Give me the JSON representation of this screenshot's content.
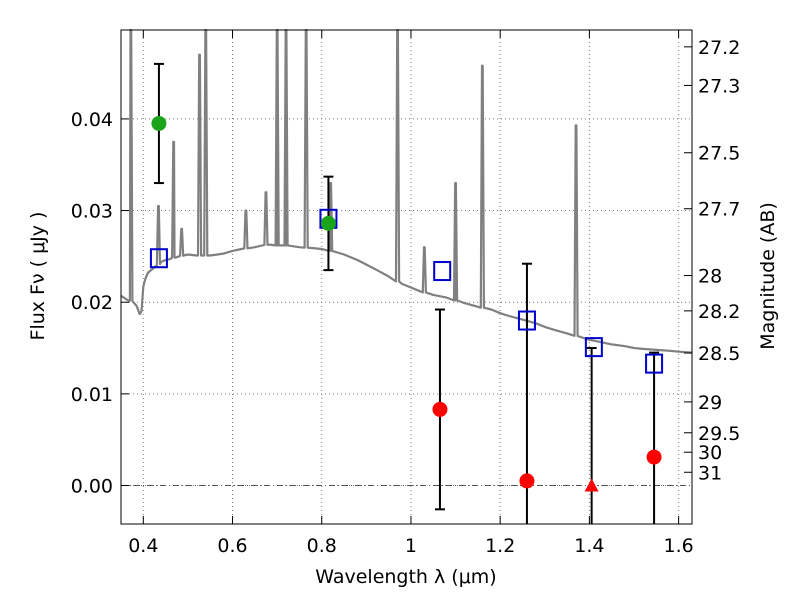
{
  "chart_data": {
    "type": "scatter",
    "xlabel": "Wavelength  λ (μm)",
    "ylabel": "Flux  Fν  ( μJy )",
    "y2label": "Magnitude (AB)",
    "xlim": [
      0.35,
      1.63
    ],
    "ylim": [
      -0.0042,
      0.0497
    ],
    "grid": true,
    "x_ticks": [
      0.4,
      0.6,
      0.8,
      1.0,
      1.2,
      1.4,
      1.6
    ],
    "x_tick_labels": [
      "0.4",
      "0.6",
      "0.8",
      "1",
      "1.2",
      "1.4",
      "1.6"
    ],
    "y_ticks": [
      0.0,
      0.01,
      0.02,
      0.03,
      0.04
    ],
    "y_tick_labels": [
      "0.00",
      "0.01",
      "0.02",
      "0.03",
      "0.04"
    ],
    "mag_ticks": [
      {
        "label": "27.2",
        "mag": 27.2
      },
      {
        "label": "27.3",
        "mag": 27.3
      },
      {
        "label": "27.5",
        "mag": 27.5
      },
      {
        "label": "27.7",
        "mag": 27.7
      },
      {
        "label": "28",
        "mag": 28.0
      },
      {
        "label": "28.2",
        "mag": 28.2
      },
      {
        "label": "28.5",
        "mag": 28.5
      },
      {
        "label": "29",
        "mag": 29.0
      },
      {
        "label": "29.5",
        "mag": 29.5
      },
      {
        "label": "30",
        "mag": 30.0
      },
      {
        "label": "31",
        "mag": 31.0
      }
    ],
    "colors": {
      "sed": "#808080",
      "detection": "#1aa41a",
      "nondetection": "#ff0000",
      "model": "#0000cc",
      "errorbar": "#000000",
      "grid": "#7f7f7f"
    },
    "series": [
      {
        "name": "model SED",
        "kind": "line",
        "x": [
          0.35,
          0.37,
          0.385,
          0.392,
          0.396,
          0.4,
          0.405,
          0.41,
          0.42,
          0.43,
          0.44,
          0.45,
          0.46,
          0.47,
          0.48,
          0.49,
          0.5,
          0.52,
          0.55,
          0.58,
          0.6,
          0.62,
          0.65,
          0.68,
          0.7,
          0.72,
          0.75,
          0.78,
          0.8,
          0.82,
          0.85,
          0.88,
          0.9,
          0.92,
          0.95,
          0.98,
          1.0,
          1.02,
          1.05,
          1.08,
          1.1,
          1.12,
          1.15,
          1.18,
          1.2,
          1.22,
          1.25,
          1.28,
          1.3,
          1.32,
          1.35,
          1.38,
          1.4,
          1.42,
          1.45,
          1.48,
          1.5,
          1.52,
          1.55,
          1.58,
          1.6,
          1.63
        ],
        "values": [
          0.0207,
          0.0202,
          0.0196,
          0.0187,
          0.019,
          0.0217,
          0.0226,
          0.0232,
          0.0236,
          0.024,
          0.0244,
          0.0246,
          0.0247,
          0.0249,
          0.025,
          0.0251,
          0.0252,
          0.0251,
          0.0251,
          0.0253,
          0.0256,
          0.0258,
          0.026,
          0.0263,
          0.0262,
          0.0262,
          0.026,
          0.0259,
          0.0258,
          0.0256,
          0.0252,
          0.0246,
          0.0241,
          0.0236,
          0.0228,
          0.022,
          0.0216,
          0.0212,
          0.0208,
          0.0205,
          0.0202,
          0.0199,
          0.0195,
          0.0192,
          0.0188,
          0.0185,
          0.0181,
          0.0177,
          0.0173,
          0.017,
          0.0166,
          0.0162,
          0.0159,
          0.0157,
          0.0154,
          0.0152,
          0.015,
          0.0149,
          0.0148,
          0.0147,
          0.0146,
          0.0145
        ]
      },
      {
        "name": "emission lines",
        "kind": "lines",
        "points": [
          {
            "x": 0.372,
            "peak": 0.0497
          },
          {
            "x": 0.434,
            "peak": 0.0305
          },
          {
            "x": 0.468,
            "peak": 0.0375
          },
          {
            "x": 0.486,
            "peak": 0.028
          },
          {
            "x": 0.526,
            "peak": 0.047
          },
          {
            "x": 0.54,
            "peak": 0.0497
          },
          {
            "x": 0.63,
            "peak": 0.03
          },
          {
            "x": 0.675,
            "peak": 0.032
          },
          {
            "x": 0.7,
            "peak": 0.0497
          },
          {
            "x": 0.72,
            "peak": 0.0497
          },
          {
            "x": 0.765,
            "peak": 0.0497
          },
          {
            "x": 0.82,
            "peak": 0.033
          },
          {
            "x": 0.97,
            "peak": 0.0497
          },
          {
            "x": 1.03,
            "peak": 0.026
          },
          {
            "x": 1.1,
            "peak": 0.033
          },
          {
            "x": 1.16,
            "peak": 0.0458
          },
          {
            "x": 1.37,
            "peak": 0.0393
          }
        ]
      },
      {
        "name": "model photometry",
        "kind": "open-square",
        "x": [
          0.435,
          0.815,
          1.07,
          1.26,
          1.41,
          1.545
        ],
        "values": [
          0.0248,
          0.0291,
          0.0234,
          0.018,
          0.0151,
          0.0133
        ]
      },
      {
        "name": "detections",
        "kind": "circle",
        "x": [
          0.435,
          0.815
        ],
        "values": [
          0.0395,
          0.0286
        ],
        "err_low": [
          0.033,
          0.0235
        ],
        "err_high": [
          0.046,
          0.0337
        ]
      },
      {
        "name": "low S/N",
        "kind": "circle",
        "x": [
          1.065,
          1.26,
          1.545
        ],
        "values": [
          0.0083,
          0.0005,
          0.0031
        ],
        "err_low": [
          -0.0026,
          -0.0045,
          -0.0045
        ],
        "err_high": [
          0.0192,
          0.0242,
          0.0145
        ]
      },
      {
        "name": "upper limit",
        "kind": "triangle",
        "x": [
          1.405
        ],
        "values": [
          0.0
        ],
        "err_low": [
          -0.0045
        ],
        "err_high": [
          0.015
        ]
      }
    ]
  }
}
